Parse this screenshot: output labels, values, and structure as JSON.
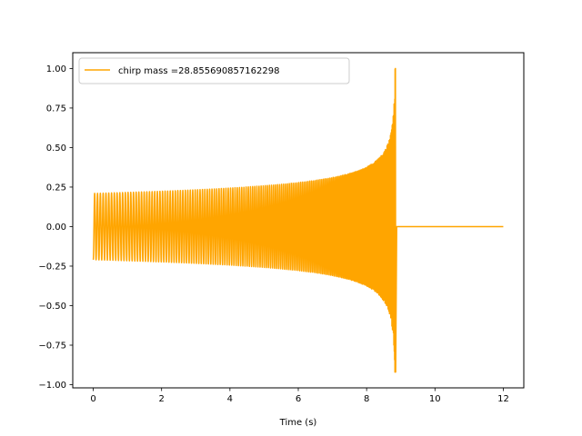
{
  "chart_data": {
    "type": "line",
    "title": "",
    "xlabel": "Time (s)",
    "ylabel": "",
    "xlim": [
      -0.6,
      12.6
    ],
    "ylim": [
      -1.02,
      1.1
    ],
    "xticks": [
      0,
      2,
      4,
      6,
      8,
      10,
      12
    ],
    "xtick_labels": [
      "0",
      "2",
      "4",
      "6",
      "8",
      "10",
      "12"
    ],
    "yticks": [
      -1.0,
      -0.75,
      -0.5,
      -0.25,
      0.0,
      0.25,
      0.5,
      0.75,
      1.0
    ],
    "ytick_labels": [
      "−1.00",
      "−0.75",
      "−0.50",
      "−0.25",
      "0.00",
      "0.25",
      "0.50",
      "0.75",
      "1.00"
    ],
    "grid": false,
    "legend_position": "upper-left",
    "series": [
      {
        "name": "chirp mass =28.855690857162298",
        "color": "#FFA500",
        "x_start": 0.0,
        "merger_time": 8.85,
        "x_end": 12.0,
        "start_amplitude": 0.21,
        "peak_positive": 1.0,
        "peak_negative": -0.92,
        "post_merger_value": 0.0
      }
    ]
  }
}
